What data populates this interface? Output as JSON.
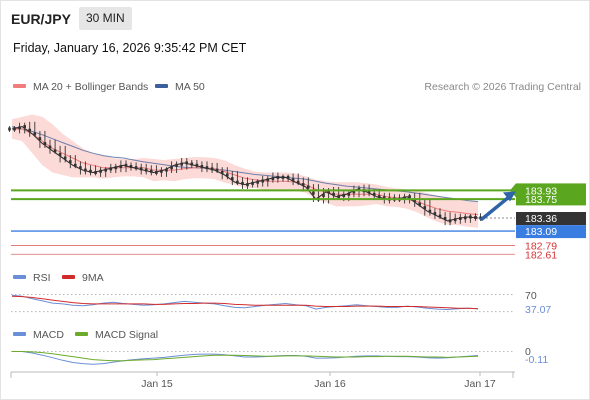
{
  "header": {
    "symbol": "EUR/JPY",
    "interval": "30 MIN",
    "datetime": "Friday, January 16, 2026 9:35:42 PM CET"
  },
  "colors": {
    "ma20": "#f07c7c",
    "bollinger_fill": "#fbd3d0",
    "ma50": "#3d5f9e",
    "resistance_green": "#5aa61e",
    "support_blue": "#3a7de0",
    "price_tag_dark": "#333333",
    "red_level": "#e06767",
    "arrow": "#2f64a8",
    "rsi": "#6a8fd6",
    "rsi_9ma": "#d12c2c",
    "macd": "#6a8fd6",
    "macd_signal": "#6cab2a"
  },
  "chart_data": [
    {
      "type": "line",
      "panel": "price",
      "legend": [
        {
          "name": "MA 20 + Bollinger Bands",
          "color": "#f07c7c"
        },
        {
          "name": "MA 50",
          "color": "#3d5f9e"
        }
      ],
      "credit": "Research © 2026 Trading Central",
      "x_ticks": [
        "Jan 15",
        "Jan 16",
        "Jan 17"
      ],
      "series": [
        {
          "name": "Price",
          "values": [
            185.2,
            185.25,
            185.1,
            184.9,
            184.75,
            184.6,
            184.45,
            184.35,
            184.3,
            184.35,
            184.4,
            184.45,
            184.4,
            184.35,
            184.3,
            184.35,
            184.45,
            184.5,
            184.45,
            184.4,
            184.35,
            184.25,
            184.1,
            184.05,
            184.1,
            184.15,
            184.2,
            184.2,
            184.1,
            184.0,
            183.75,
            183.9,
            183.8,
            183.85,
            183.95,
            183.9,
            183.8,
            183.75,
            183.75,
            183.8,
            183.65,
            183.5,
            183.4,
            183.3,
            183.35,
            183.38,
            183.36
          ]
        },
        {
          "name": "MA 20",
          "values": [
            185.2,
            185.2,
            185.1,
            184.95,
            184.8,
            184.7,
            184.6,
            184.5,
            184.45,
            184.4,
            184.4,
            184.4,
            184.4,
            184.4,
            184.35,
            184.35,
            184.35,
            184.38,
            184.4,
            184.4,
            184.38,
            184.32,
            184.25,
            184.18,
            184.15,
            184.12,
            184.12,
            184.12,
            184.1,
            184.05,
            183.95,
            183.9,
            183.85,
            183.85,
            183.85,
            183.85,
            183.85,
            183.8,
            183.78,
            183.75,
            183.7,
            183.62,
            183.55,
            183.5,
            183.48,
            183.45,
            183.43
          ]
        },
        {
          "name": "Upper Bollinger",
          "values": [
            185.4,
            185.45,
            185.5,
            185.45,
            185.3,
            185.1,
            184.95,
            184.8,
            184.7,
            184.65,
            184.6,
            184.58,
            184.58,
            184.6,
            184.58,
            184.56,
            184.58,
            184.6,
            184.62,
            184.62,
            184.6,
            184.55,
            184.45,
            184.38,
            184.32,
            184.3,
            184.3,
            184.3,
            184.28,
            184.22,
            184.15,
            184.12,
            184.1,
            184.1,
            184.1,
            184.08,
            184.05,
            184.0,
            183.97,
            183.95,
            183.92,
            183.87,
            183.82,
            183.78,
            183.75,
            183.72,
            183.7
          ]
        },
        {
          "name": "Lower Bollinger",
          "values": [
            185.0,
            184.95,
            184.7,
            184.45,
            184.3,
            184.25,
            184.2,
            184.2,
            184.2,
            184.17,
            184.2,
            184.22,
            184.22,
            184.2,
            184.12,
            184.14,
            184.12,
            184.16,
            184.18,
            184.18,
            184.16,
            184.09,
            184.05,
            183.98,
            183.98,
            183.94,
            183.94,
            183.94,
            183.92,
            183.88,
            183.75,
            183.68,
            183.6,
            183.6,
            183.6,
            183.62,
            183.65,
            183.6,
            183.59,
            183.55,
            183.48,
            183.37,
            183.28,
            183.22,
            183.21,
            183.18,
            183.16
          ]
        },
        {
          "name": "MA 50",
          "values": [
            185.25,
            185.2,
            185.15,
            185.08,
            185.0,
            184.92,
            184.84,
            184.76,
            184.7,
            184.65,
            184.62,
            184.6,
            184.56,
            184.52,
            184.49,
            184.46,
            184.43,
            184.41,
            184.4,
            184.39,
            184.37,
            184.35,
            184.32,
            184.29,
            184.26,
            184.24,
            184.22,
            184.2,
            184.18,
            184.16,
            184.12,
            184.08,
            184.05,
            184.02,
            184.0,
            183.98,
            183.96,
            183.94,
            183.92,
            183.9,
            183.87,
            183.84,
            183.81,
            183.78,
            183.75,
            183.72,
            183.7
          ]
        }
      ],
      "levels": [
        {
          "label": "183.93",
          "value": 183.93,
          "kind": "resistance",
          "color": "#5aa61e"
        },
        {
          "label": "183.75",
          "value": 183.75,
          "kind": "resistance",
          "color": "#5aa61e"
        },
        {
          "label": "183.36",
          "value": 183.36,
          "kind": "last-price",
          "color": "#333333"
        },
        {
          "label": "183.09",
          "value": 183.09,
          "kind": "support",
          "color": "#3a7de0"
        },
        {
          "label": "182.79",
          "value": 182.79,
          "kind": "support",
          "color": "#e06767"
        },
        {
          "label": "182.61",
          "value": 182.61,
          "kind": "support",
          "color": "#e06767"
        }
      ],
      "ylim": [
        182.45,
        185.8
      ],
      "pivot_arrow": {
        "from": 183.36,
        "to": 183.93,
        "direction": "up"
      }
    },
    {
      "type": "line",
      "panel": "rsi",
      "legend": [
        {
          "name": "RSI",
          "color": "#6a8fd6"
        },
        {
          "name": "9MA",
          "color": "#d12c2c"
        }
      ],
      "reference_label": "70",
      "reference_value": 70,
      "current_label": "37.07",
      "current_value": 37.07,
      "ylim": [
        20,
        85
      ],
      "series": [
        {
          "name": "RSI",
          "values": [
            68,
            66,
            60,
            55,
            50,
            48,
            45,
            44,
            46,
            50,
            52,
            49,
            47,
            45,
            46,
            48,
            51,
            54,
            52,
            50,
            48,
            44,
            40,
            39,
            42,
            45,
            47,
            49,
            46,
            44,
            36,
            40,
            42,
            44,
            46,
            44,
            42,
            40,
            40,
            43,
            41,
            38,
            36,
            35,
            37,
            38,
            37
          ]
        },
        {
          "name": "9MA",
          "values": [
            66,
            65,
            63,
            60,
            57,
            54,
            51,
            49,
            48,
            48,
            48,
            48,
            48,
            48,
            47,
            47,
            48,
            49,
            49,
            50,
            50,
            49,
            47,
            46,
            45,
            45,
            45,
            45,
            45,
            45,
            43,
            42,
            42,
            42,
            43,
            43,
            43,
            42,
            42,
            42,
            42,
            41,
            40,
            39,
            38,
            38,
            37
          ]
        }
      ]
    },
    {
      "type": "line",
      "panel": "macd",
      "legend": [
        {
          "name": "MACD",
          "color": "#6a8fd6"
        },
        {
          "name": "MACD Signal",
          "color": "#6cab2a"
        }
      ],
      "reference_label": "0",
      "reference_value": 0,
      "current_label": "-0.11",
      "current_value": -0.11,
      "ylim": [
        -0.45,
        0.15
      ],
      "series": [
        {
          "name": "MACD",
          "values": [
            0.0,
            0.0,
            -0.04,
            -0.1,
            -0.17,
            -0.24,
            -0.3,
            -0.33,
            -0.35,
            -0.33,
            -0.29,
            -0.25,
            -0.22,
            -0.2,
            -0.18,
            -0.16,
            -0.13,
            -0.1,
            -0.08,
            -0.07,
            -0.07,
            -0.09,
            -0.12,
            -0.15,
            -0.15,
            -0.14,
            -0.12,
            -0.11,
            -0.11,
            -0.13,
            -0.18,
            -0.18,
            -0.17,
            -0.15,
            -0.13,
            -0.12,
            -0.12,
            -0.13,
            -0.14,
            -0.14,
            -0.15,
            -0.17,
            -0.18,
            -0.17,
            -0.15,
            -0.13,
            -0.11
          ]
        },
        {
          "name": "MACD Signal",
          "values": [
            0.0,
            0.0,
            -0.01,
            -0.03,
            -0.06,
            -0.1,
            -0.14,
            -0.18,
            -0.22,
            -0.24,
            -0.25,
            -0.25,
            -0.24,
            -0.23,
            -0.22,
            -0.2,
            -0.18,
            -0.16,
            -0.14,
            -0.12,
            -0.1,
            -0.1,
            -0.1,
            -0.11,
            -0.12,
            -0.13,
            -0.13,
            -0.12,
            -0.12,
            -0.12,
            -0.13,
            -0.14,
            -0.15,
            -0.15,
            -0.15,
            -0.14,
            -0.14,
            -0.13,
            -0.13,
            -0.13,
            -0.14,
            -0.15,
            -0.15,
            -0.16,
            -0.15,
            -0.14,
            -0.13
          ]
        }
      ]
    }
  ]
}
